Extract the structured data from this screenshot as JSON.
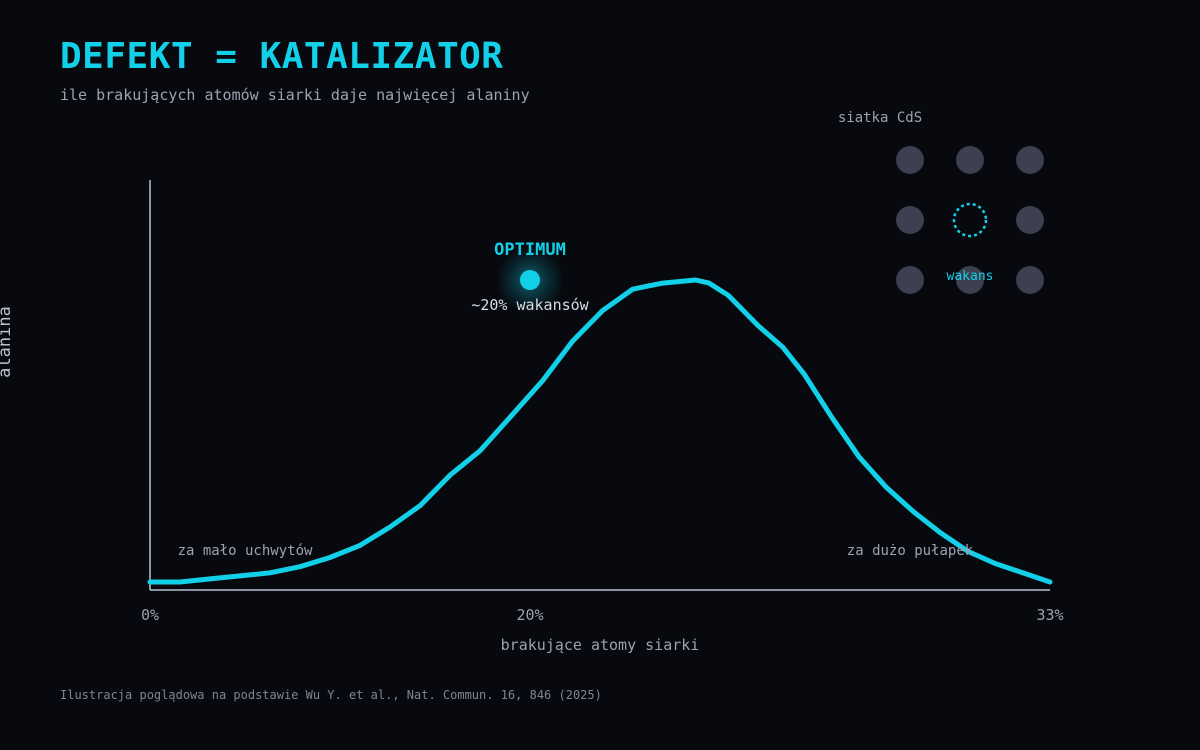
{
  "header": {
    "title": "DEFEKT = KATALIZATOR",
    "subtitle": "ile brakujących atomów siarki daje najwięcej alaniny"
  },
  "footnote": "Ilustracja poglądowa na podstawie Wu Y. et al., Nat. Commun. 16, 846 (2025)",
  "colors": {
    "accent": "#12d0e8",
    "axis": "#b9c2d3",
    "muted_text": "#9aa3b2",
    "lattice_atom": "#3c4050",
    "background": "#07090e"
  },
  "chart_data": {
    "type": "line",
    "title": "DEFEKT = KATALIZATOR",
    "subtitle": "ile brakujących atomów siarki daje najwięcej alaniny",
    "xlabel": "brakujące atomy siarki",
    "ylabel": "alanina",
    "x_ticks": [
      "0%",
      "20%",
      "33%"
    ],
    "xlim": [
      0,
      33
    ],
    "ylim": [
      0,
      1
    ],
    "grid": false,
    "peak": {
      "x": 20,
      "y": 1.0,
      "label": "OPTIMUM",
      "sublabel": "~20% wakansów"
    },
    "annotations": [
      {
        "text": "za mało uchwytów",
        "x": 5
      },
      {
        "text": "za dużo pułapek",
        "x": 28.5
      }
    ],
    "inset": {
      "title": "siatka CdS",
      "grid": "3x3",
      "vacancy_label": "wakans",
      "vacancy_position": "center"
    },
    "series": [
      {
        "values": [
          [
            0,
            0.01
          ],
          [
            1.1,
            0.01
          ],
          [
            2.2,
            0.02
          ],
          [
            3.3,
            0.03
          ],
          [
            4.4,
            0.04
          ],
          [
            5.5,
            0.06
          ],
          [
            6.6,
            0.09
          ],
          [
            7.7,
            0.13
          ],
          [
            8.8,
            0.19
          ],
          [
            9.9,
            0.26
          ],
          [
            11,
            0.36
          ],
          [
            12.1,
            0.44
          ],
          [
            13.2,
            0.55
          ],
          [
            14.4,
            0.67
          ],
          [
            15.5,
            0.8
          ],
          [
            16.6,
            0.9
          ],
          [
            17.7,
            0.97
          ],
          [
            18.8,
            0.99
          ],
          [
            20,
            1.0
          ],
          [
            20.5,
            0.99
          ],
          [
            21.2,
            0.95
          ],
          [
            22.3,
            0.85
          ],
          [
            23.2,
            0.78
          ],
          [
            24,
            0.69
          ],
          [
            25,
            0.55
          ],
          [
            26,
            0.42
          ],
          [
            27,
            0.32
          ],
          [
            28,
            0.24
          ],
          [
            29,
            0.17
          ],
          [
            30,
            0.11
          ],
          [
            31,
            0.07
          ],
          [
            32,
            0.04
          ],
          [
            33,
            0.01
          ]
        ]
      }
    ]
  }
}
